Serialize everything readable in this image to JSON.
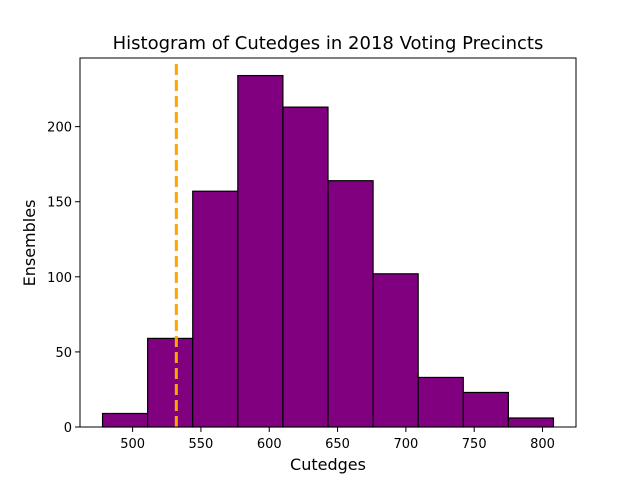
{
  "chart_data": {
    "type": "bar",
    "title": "Histogram of Cutedges in 2018 Voting Precincts",
    "xlabel": "Cutedges",
    "ylabel": "Ensembles",
    "bins": [
      {
        "x0": 478,
        "x1": 511,
        "count": 9
      },
      {
        "x0": 511,
        "x1": 544,
        "count": 59
      },
      {
        "x0": 544,
        "x1": 577,
        "count": 157
      },
      {
        "x0": 577,
        "x1": 610,
        "count": 234
      },
      {
        "x0": 610,
        "x1": 643,
        "count": 213
      },
      {
        "x0": 643,
        "x1": 676,
        "count": 164
      },
      {
        "x0": 676,
        "x1": 709,
        "count": 102
      },
      {
        "x0": 709,
        "x1": 742,
        "count": 33
      },
      {
        "x0": 742,
        "x1": 775,
        "count": 23
      },
      {
        "x0": 775,
        "x1": 808,
        "count": 6
      }
    ],
    "reference_line": {
      "x": 532,
      "color": "#ffa500",
      "style": "dashed"
    },
    "bar_color": "#800080",
    "bar_edge_color": "#000000",
    "xlim": [
      461.5,
      824.5
    ],
    "ylim": [
      0,
      245.7
    ],
    "xticks": [
      500,
      550,
      600,
      650,
      700,
      750,
      800
    ],
    "yticks": [
      0,
      50,
      100,
      150,
      200
    ],
    "grid": false,
    "legend": "none"
  }
}
